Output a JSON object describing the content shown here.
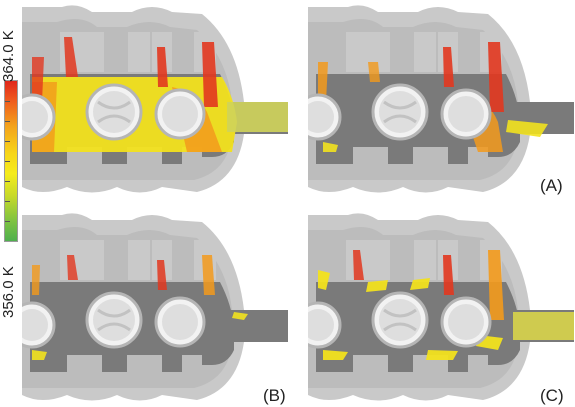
{
  "colorbar": {
    "max_label": "364.0 K",
    "min_label": "356.0 K",
    "max_value": 364.0,
    "min_value": 356.0,
    "unit": "K",
    "colors": [
      "#e0271b",
      "#ef5a1e",
      "#f3a21c",
      "#f7d51a",
      "#f5ec1c",
      "#c6d92a",
      "#7cc242",
      "#4fb04e"
    ]
  },
  "panels": [
    {
      "label": "",
      "fill": "full"
    },
    {
      "label": "(A)",
      "fill": "partial"
    },
    {
      "label": "(B)",
      "fill": "sparse"
    },
    {
      "label": "(C)",
      "fill": "scattered"
    }
  ],
  "colors": {
    "casing": "#c9c9c9",
    "casing_shadow": "#b0b0b0",
    "core": "#7a7a7a",
    "bore": "#d6d6d6",
    "hot": "#e2371f",
    "warm": "#f39a1c",
    "yellow": "#f2e21e"
  }
}
